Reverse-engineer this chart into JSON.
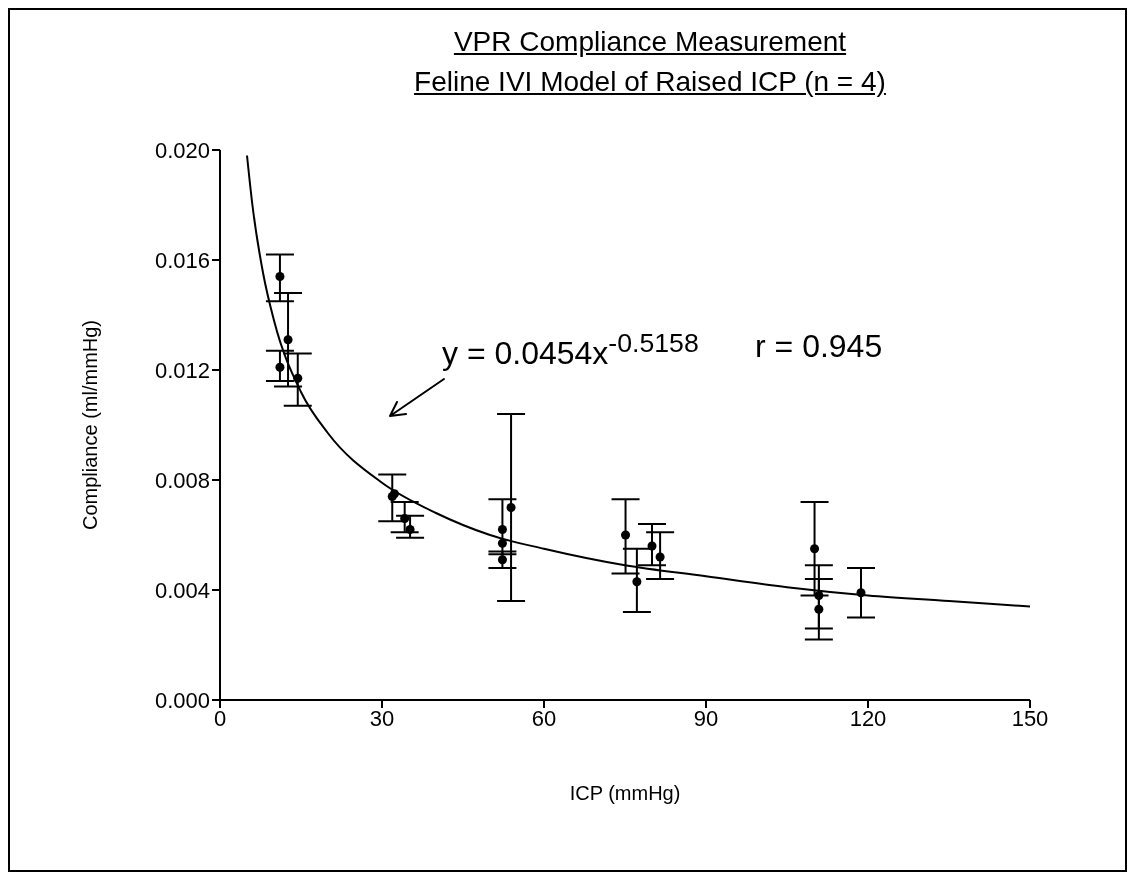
{
  "chart_data": {
    "type": "scatter",
    "title": "VPR Compliance Measurement",
    "subtitle": "Feline IVI Model of Raised ICP (n = 4)",
    "xlabel": "ICP (mmHg)",
    "ylabel": "Compliance (ml/mmHg)",
    "xlim": [
      0,
      150
    ],
    "xticks": [
      0,
      30,
      60,
      90,
      120,
      150
    ],
    "ylim": [
      0,
      0.02
    ],
    "yticks": [
      {
        "value": 0,
        "label": "0.000"
      },
      {
        "value": 0.004,
        "label": "0.004"
      },
      {
        "value": 0.008,
        "label": "0.008"
      },
      {
        "value": 0.012,
        "label": "0.012"
      },
      {
        "value": 0.016,
        "label": "0.016"
      },
      {
        "value": 0.02,
        "label": "0.020"
      }
    ],
    "grid": false,
    "legend": false,
    "marker": "circle",
    "annotations": [
      "y = 0.0454x$^{-0.5158}$",
      "r = 0.945"
    ],
    "series": [
      {
        "color": "#000000",
        "x": [
          11.1,
          12.6,
          11.1,
          14.4,
          31.9,
          32.3,
          34.2,
          35.2,
          52.3,
          52.3,
          52.3,
          53.9,
          75.1,
          77.2,
          80.0,
          81.5,
          110.1,
          110.9,
          110.9,
          118.7
        ],
        "values": [
          0.0154,
          0.0131,
          0.0121,
          0.0117,
          0.0074,
          0.0075,
          0.0066,
          0.0062,
          0.0062,
          0.0057,
          0.0051,
          0.007,
          0.006,
          0.0043,
          0.0056,
          0.0052,
          0.0055,
          0.0038,
          0.0033,
          0.0039
        ],
        "errors": [
          [
            0.0145,
            0.0162
          ],
          [
            0.0114,
            0.0148
          ],
          [
            0.0116,
            0.0127
          ],
          [
            0.0107,
            0.0126
          ],
          [
            0.0065,
            0.0082
          ],
          null,
          [
            0.0061,
            0.0072
          ],
          [
            0.0059,
            0.0067
          ],
          [
            0.0053,
            0.0073
          ],
          null,
          [
            0.0048,
            0.0054
          ],
          [
            0.0036,
            0.0104
          ],
          [
            0.0046,
            0.0073
          ],
          [
            0.0032,
            0.0055
          ],
          [
            0.0049,
            0.0064
          ],
          [
            0.0044,
            0.0061
          ],
          [
            0.0038,
            0.0072
          ],
          [
            0.0026,
            0.0049
          ],
          [
            0.0022,
            0.0044
          ],
          [
            0.003,
            0.0048
          ]
        ]
      },
      {
        "type": "line",
        "color": "#000000",
        "marker": "none",
        "line_style": "solid",
        "x": [
          5,
          6,
          8,
          10,
          15,
          20,
          30,
          40,
          50,
          60,
          75,
          90,
          105,
          120,
          135,
          150
        ],
        "values": [
          0.0198,
          0.018,
          0.0155,
          0.0138,
          0.0112,
          0.0097,
          0.0079,
          0.0068,
          0.006,
          0.0055,
          0.0049,
          0.0045,
          0.0041,
          0.0038,
          0.0036,
          0.0034
        ]
      }
    ]
  }
}
